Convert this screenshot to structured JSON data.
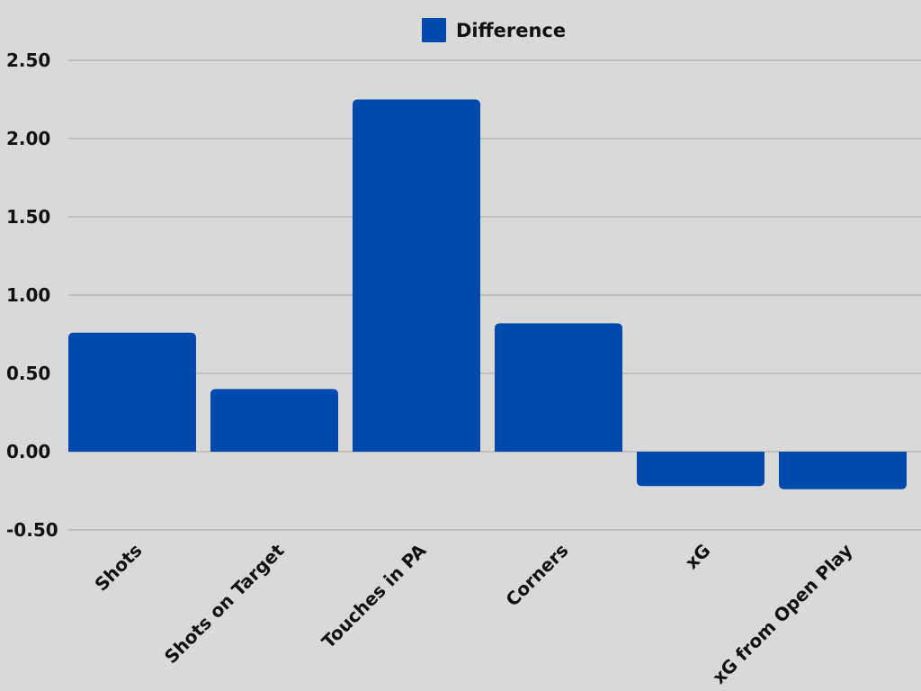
{
  "chart_data": {
    "type": "bar",
    "title": "",
    "xlabel": "",
    "ylabel": "",
    "categories": [
      "Shots",
      "Shots on Target",
      "Touches in PA",
      "Corners",
      "xG",
      "xG from Open Play"
    ],
    "series": [
      {
        "name": "Difference",
        "values": [
          0.76,
          0.4,
          2.25,
          0.82,
          -0.22,
          -0.24
        ],
        "color": "#004aad"
      }
    ],
    "ylim": [
      -0.5,
      2.5
    ],
    "yticks": [
      2.5,
      2.0,
      1.5,
      1.0,
      0.5,
      0.0,
      -0.5
    ],
    "ytick_labels": [
      "2.50",
      "2.00",
      "1.50",
      "1.00",
      "0.50",
      "0.00",
      "-0.50"
    ],
    "grid": true,
    "legend": "top-center"
  },
  "colors": {
    "background": "#d9d9d9",
    "grid": "#a6a6a6",
    "bar": "#004aad",
    "text": "#111111"
  }
}
